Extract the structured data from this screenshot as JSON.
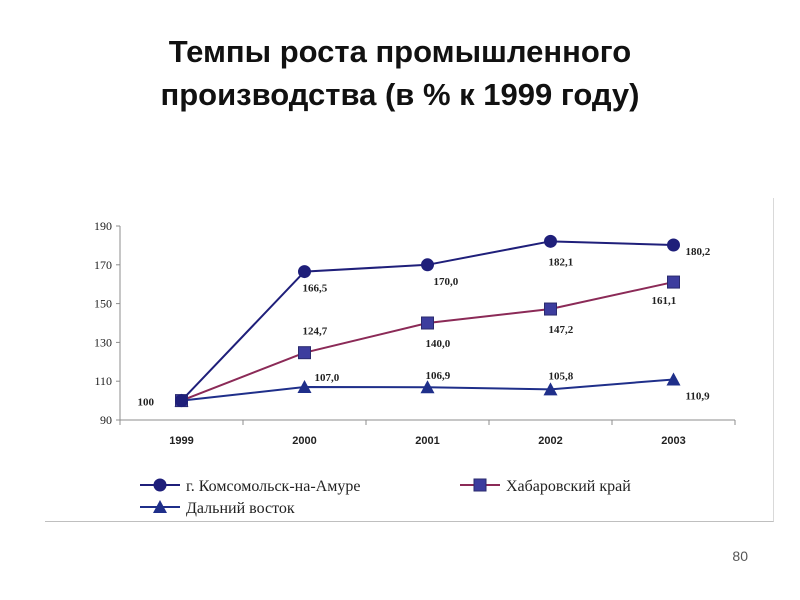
{
  "slide": {
    "title_line1": "Темпы роста промышленного",
    "title_line2": "производства (в % к 1999 году)",
    "page_number": "80"
  },
  "chart_data": {
    "type": "line",
    "categories": [
      "1999",
      "2000",
      "2001",
      "2002",
      "2003"
    ],
    "ylim": [
      90,
      190
    ],
    "yticks": [
      "90",
      "110",
      "130",
      "150",
      "170",
      "190"
    ],
    "grid": false,
    "legend_position": "bottom",
    "series": [
      {
        "name": "г. Комсомольск-на-Амуре",
        "values": [
          100,
          166.5,
          170.0,
          182.1,
          180.2
        ],
        "labels": [
          "100",
          "166,5",
          "170,0",
          "182,1",
          "180,2"
        ],
        "color": "#1f1f7a",
        "marker": "circle"
      },
      {
        "name": "Хабаровский край",
        "values": [
          100,
          124.7,
          140.0,
          147.2,
          161.1
        ],
        "labels": [
          "",
          "124,7",
          "140,0",
          "147,2",
          "161,1"
        ],
        "color": "#8b2a57",
        "marker_color": "#3d3d9e",
        "marker": "square"
      },
      {
        "name": "Дальний восток",
        "values": [
          100,
          107.0,
          106.9,
          105.8,
          110.9
        ],
        "labels": [
          "",
          "107,0",
          "106,9",
          "105,8",
          "110,9"
        ],
        "color": "#1f2f8a",
        "marker": "triangle"
      }
    ]
  }
}
